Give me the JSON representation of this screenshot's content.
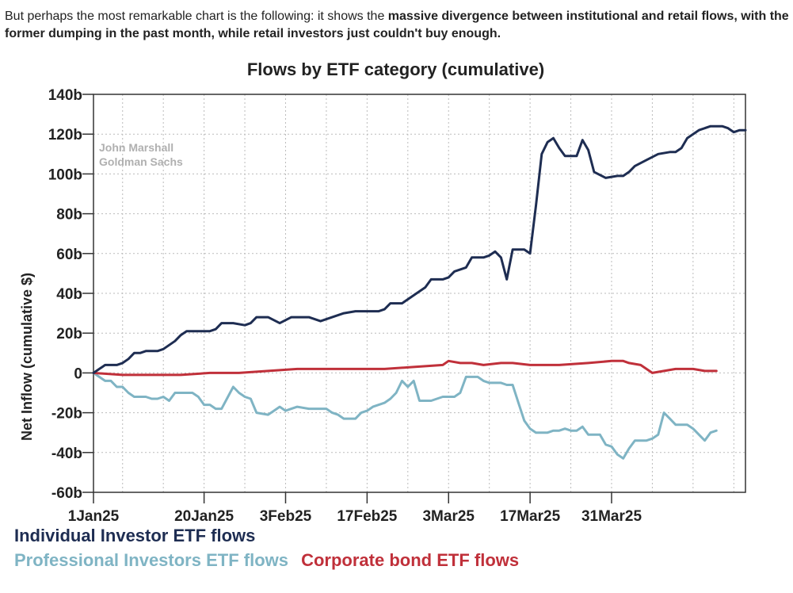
{
  "article": {
    "intro_text": "But perhaps the most remarkable chart is the following: it shows the ",
    "intro_bold": "massive divergence between institutional and retail flows, with the former dumping in the past month, while retail investors just couldn't buy enough."
  },
  "colors": {
    "individual": "#1e2d52",
    "professional": "#7fb4c4",
    "corporate": "#c0303a",
    "axis": "#333333",
    "grid": "#bbbbbb",
    "watermark": "#b0b0b0"
  },
  "chart_data": {
    "type": "line",
    "title": "Flows by ETF category (cumulative)",
    "ylabel": "Net Inflow (cumulative $)",
    "xlabel": "",
    "watermark": [
      "John Marshall",
      "Goldman Sachs"
    ],
    "ylim": [
      -60,
      140
    ],
    "xlim": [
      0,
      112
    ],
    "yticks": [
      {
        "value": 140,
        "label": "140b"
      },
      {
        "value": 120,
        "label": "120b"
      },
      {
        "value": 100,
        "label": "100b"
      },
      {
        "value": 80,
        "label": "80b"
      },
      {
        "value": 60,
        "label": "60b"
      },
      {
        "value": 40,
        "label": "40b"
      },
      {
        "value": 20,
        "label": "20b"
      },
      {
        "value": 0,
        "label": "0"
      },
      {
        "value": -20,
        "label": "-20b"
      },
      {
        "value": -40,
        "label": "-40b"
      },
      {
        "value": -60,
        "label": "-60b"
      }
    ],
    "xticks": [
      {
        "value": 0,
        "label": "1Jan25"
      },
      {
        "value": 19,
        "label": "20Jan25"
      },
      {
        "value": 33,
        "label": "3Feb25"
      },
      {
        "value": 47,
        "label": "17Feb25"
      },
      {
        "value": 61,
        "label": "3Mar25"
      },
      {
        "value": 75,
        "label": "17Mar25"
      },
      {
        "value": 89,
        "label": "31Mar25"
      }
    ],
    "xgrid": [
      0,
      5,
      12,
      19,
      26,
      33,
      40,
      47,
      54,
      61,
      68,
      75,
      82,
      89,
      96,
      103,
      110
    ],
    "series": [
      {
        "name": "Individual Investor ETF flows",
        "color": "#1e2d52",
        "points": [
          [
            0,
            0
          ],
          [
            2,
            4
          ],
          [
            4,
            4
          ],
          [
            5,
            5
          ],
          [
            6,
            7
          ],
          [
            7,
            10
          ],
          [
            8,
            10
          ],
          [
            9,
            11
          ],
          [
            11,
            11
          ],
          [
            12,
            12
          ],
          [
            14,
            16
          ],
          [
            15,
            19
          ],
          [
            16,
            21
          ],
          [
            18,
            21
          ],
          [
            19,
            21
          ],
          [
            20,
            21
          ],
          [
            21,
            22
          ],
          [
            22,
            25
          ],
          [
            24,
            25
          ],
          [
            26,
            24
          ],
          [
            27,
            25
          ],
          [
            28,
            28
          ],
          [
            30,
            28
          ],
          [
            32,
            25
          ],
          [
            34,
            28
          ],
          [
            37,
            28
          ],
          [
            39,
            26
          ],
          [
            41,
            28
          ],
          [
            43,
            30
          ],
          [
            45,
            31
          ],
          [
            47,
            31
          ],
          [
            49,
            31
          ],
          [
            50,
            32
          ],
          [
            51,
            35
          ],
          [
            53,
            35
          ],
          [
            55,
            39
          ],
          [
            57,
            43
          ],
          [
            58,
            47
          ],
          [
            60,
            47
          ],
          [
            61,
            48
          ],
          [
            62,
            51
          ],
          [
            64,
            53
          ],
          [
            65,
            58
          ],
          [
            67,
            58
          ],
          [
            68,
            59
          ],
          [
            69,
            61
          ],
          [
            70,
            58
          ],
          [
            71,
            47
          ],
          [
            72,
            62
          ],
          [
            74,
            62
          ],
          [
            75,
            60
          ],
          [
            76,
            84
          ],
          [
            77,
            110
          ],
          [
            78,
            116
          ],
          [
            79,
            118
          ],
          [
            80,
            113
          ],
          [
            81,
            109
          ],
          [
            83,
            109
          ],
          [
            84,
            117
          ],
          [
            85,
            112
          ],
          [
            86,
            101
          ],
          [
            88,
            98
          ],
          [
            90,
            99
          ],
          [
            91,
            99
          ],
          [
            92,
            101
          ],
          [
            93,
            104
          ],
          [
            95,
            107
          ],
          [
            97,
            110
          ],
          [
            99,
            111
          ],
          [
            100,
            111
          ],
          [
            101,
            113
          ],
          [
            102,
            118
          ],
          [
            104,
            122
          ],
          [
            106,
            124
          ],
          [
            107,
            124
          ],
          [
            108,
            124
          ],
          [
            109,
            123
          ],
          [
            110,
            121
          ],
          [
            111,
            122
          ],
          [
            112,
            122
          ]
        ]
      },
      {
        "name": "Professional Investors ETF flows",
        "color": "#7fb4c4",
        "points": [
          [
            0,
            0
          ],
          [
            1,
            -2
          ],
          [
            2,
            -4
          ],
          [
            3,
            -4
          ],
          [
            4,
            -7
          ],
          [
            5,
            -7
          ],
          [
            6,
            -10
          ],
          [
            7,
            -12
          ],
          [
            9,
            -12
          ],
          [
            10,
            -13
          ],
          [
            11,
            -13
          ],
          [
            12,
            -12
          ],
          [
            13,
            -14
          ],
          [
            14,
            -10
          ],
          [
            16,
            -10
          ],
          [
            17,
            -10
          ],
          [
            18,
            -12
          ],
          [
            19,
            -16
          ],
          [
            20,
            -16
          ],
          [
            21,
            -18
          ],
          [
            22,
            -18
          ],
          [
            24,
            -7
          ],
          [
            25,
            -10
          ],
          [
            26,
            -12
          ],
          [
            27,
            -13
          ],
          [
            28,
            -20
          ],
          [
            30,
            -21
          ],
          [
            31,
            -19
          ],
          [
            32,
            -17
          ],
          [
            33,
            -19
          ],
          [
            34,
            -18
          ],
          [
            35,
            -17
          ],
          [
            37,
            -18
          ],
          [
            39,
            -18
          ],
          [
            40,
            -18
          ],
          [
            41,
            -20
          ],
          [
            42,
            -21
          ],
          [
            43,
            -23
          ],
          [
            45,
            -23
          ],
          [
            46,
            -20
          ],
          [
            47,
            -19
          ],
          [
            48,
            -17
          ],
          [
            49,
            -16
          ],
          [
            50,
            -15
          ],
          [
            51,
            -13
          ],
          [
            52,
            -10
          ],
          [
            53,
            -4
          ],
          [
            54,
            -7
          ],
          [
            55,
            -4
          ],
          [
            56,
            -14
          ],
          [
            58,
            -14
          ],
          [
            59,
            -13
          ],
          [
            60,
            -12
          ],
          [
            62,
            -12
          ],
          [
            63,
            -10
          ],
          [
            64,
            -2
          ],
          [
            66,
            -2
          ],
          [
            67,
            -4
          ],
          [
            68,
            -5
          ],
          [
            69,
            -5
          ],
          [
            70,
            -5
          ],
          [
            71,
            -6
          ],
          [
            72,
            -6
          ],
          [
            73,
            -15
          ],
          [
            74,
            -24
          ],
          [
            75,
            -28
          ],
          [
            76,
            -30
          ],
          [
            78,
            -30
          ],
          [
            79,
            -29
          ],
          [
            80,
            -29
          ],
          [
            81,
            -28
          ],
          [
            82,
            -29
          ],
          [
            83,
            -29
          ],
          [
            84,
            -27
          ],
          [
            85,
            -31
          ],
          [
            87,
            -31
          ],
          [
            88,
            -36
          ],
          [
            89,
            -37
          ],
          [
            90,
            -41
          ],
          [
            91,
            -43
          ],
          [
            92,
            -38
          ],
          [
            93,
            -34
          ],
          [
            95,
            -34
          ],
          [
            96,
            -33
          ],
          [
            97,
            -31
          ],
          [
            98,
            -20
          ],
          [
            99,
            -23
          ],
          [
            100,
            -26
          ],
          [
            102,
            -26
          ],
          [
            103,
            -28
          ],
          [
            104,
            -31
          ],
          [
            105,
            -34
          ],
          [
            106,
            -30
          ],
          [
            107,
            -29
          ]
        ]
      },
      {
        "name": "Corporate bond ETF flows",
        "color": "#c0303a",
        "points": [
          [
            0,
            0
          ],
          [
            5,
            -1
          ],
          [
            10,
            -1
          ],
          [
            15,
            -1
          ],
          [
            20,
            0
          ],
          [
            25,
            0
          ],
          [
            30,
            1
          ],
          [
            35,
            2
          ],
          [
            40,
            2
          ],
          [
            45,
            2
          ],
          [
            50,
            2
          ],
          [
            55,
            3
          ],
          [
            60,
            4
          ],
          [
            61,
            6
          ],
          [
            63,
            5
          ],
          [
            65,
            5
          ],
          [
            67,
            4
          ],
          [
            70,
            5
          ],
          [
            72,
            5
          ],
          [
            75,
            4
          ],
          [
            80,
            4
          ],
          [
            85,
            5
          ],
          [
            89,
            6
          ],
          [
            91,
            6
          ],
          [
            92,
            5
          ],
          [
            94,
            4
          ],
          [
            95,
            2
          ],
          [
            96,
            0
          ],
          [
            98,
            1
          ],
          [
            100,
            2
          ],
          [
            103,
            2
          ],
          [
            105,
            1
          ],
          [
            107,
            1
          ]
        ]
      }
    ],
    "legend_lines": [
      [
        "Individual Investor ETF flows"
      ],
      [
        "Professional Investors ETF flows",
        "Corporate bond ETF flows"
      ]
    ]
  }
}
